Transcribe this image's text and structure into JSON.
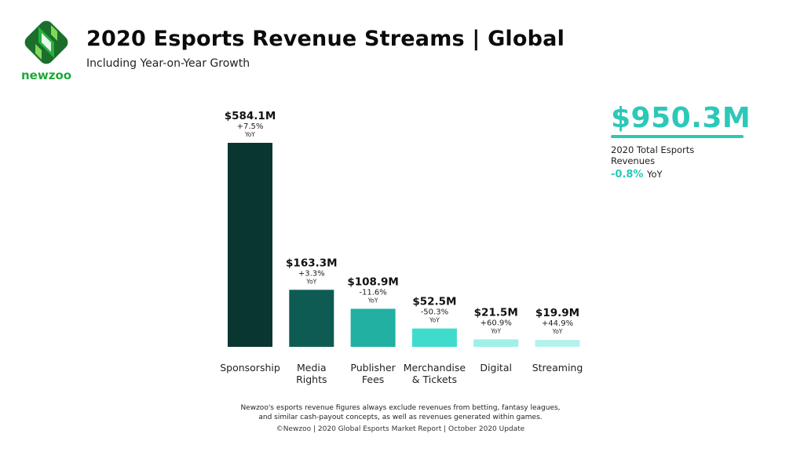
{
  "header": {
    "title": "2020 Esports Revenue Streams | Global",
    "subtitle": "Including Year-on-Year Growth",
    "brand": "newzoo"
  },
  "chart_data": {
    "type": "bar",
    "title": "2020 Esports Revenue Streams | Global",
    "subtitle": "Including Year-on-Year Growth",
    "categories": [
      "Sponsorship",
      "Media\nRights",
      "Publisher\nFees",
      "Merchandise\n& Tickets",
      "Digital",
      "Streaming"
    ],
    "values": [
      584.1,
      163.3,
      108.9,
      52.5,
      21.5,
      19.9
    ],
    "value_labels": [
      "$584.1M",
      "$163.3M",
      "$108.9M",
      "$52.5M",
      "$21.5M",
      "$19.9M"
    ],
    "yoy": [
      "+7.5%",
      "+3.3%",
      "-11.6%",
      "-50.3%",
      "+60.9%",
      "+44.9%"
    ],
    "yoy_unit": "YoY",
    "colors": [
      "#0a3632",
      "#0e5b54",
      "#22b0a2",
      "#3fdcce",
      "#9ff0e8",
      "#b4f2ec"
    ],
    "unit": "$M",
    "ylim": [
      0,
      584.1
    ],
    "grid": false
  },
  "summary": {
    "total": "$950.3M",
    "label": "2020 Total Esports Revenues",
    "yoy": "-0.8%",
    "yoy_unit": "YoY"
  },
  "note": "Newzoo's esports revenue figures always exclude revenues from betting, fantasy leagues, and similar cash-payout concepts, as well as revenues generated within games.",
  "footer": "©Newzoo | 2020 Global Esports Market Report | October 2020 Update"
}
